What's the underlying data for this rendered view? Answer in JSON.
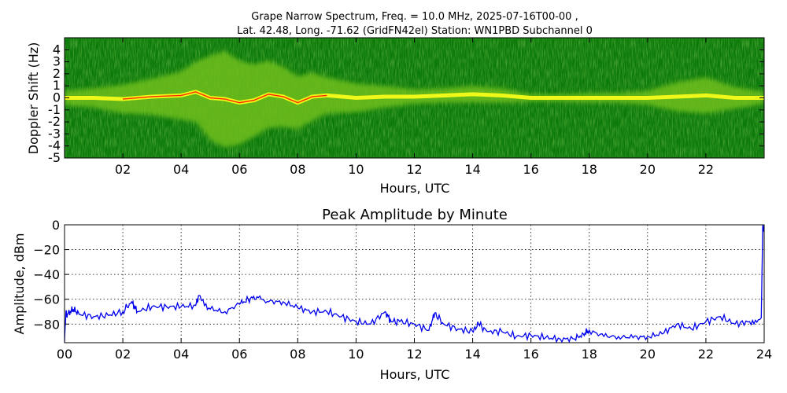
{
  "chart_data": [
    {
      "type": "heatmap",
      "title_line1": "Grape Narrow Spectrum, Freq. = 10.0 MHz, 2025-07-16T00-00 ,",
      "title_line2": "Lat.  42.48, Long. -71.62 (GridFN42el) Station: WN1PBD Subchannel 0",
      "xlabel": "Hours, UTC",
      "ylabel": "Doppler Shift (Hz)",
      "xlim": [
        0,
        24
      ],
      "ylim": [
        -5,
        5
      ],
      "x_ticks": [
        2,
        4,
        6,
        8,
        10,
        12,
        14,
        16,
        18,
        20,
        22
      ],
      "x_tick_labels": [
        "02",
        "04",
        "06",
        "08",
        "10",
        "12",
        "14",
        "16",
        "18",
        "20",
        "22"
      ],
      "y_ticks": [
        -5,
        -4,
        -3,
        -2,
        -1,
        0,
        1,
        2,
        3,
        4
      ],
      "y_tick_labels": [
        "-5",
        "-4",
        "-3",
        "-2",
        "-1",
        "0",
        "1",
        "2",
        "3",
        "4"
      ],
      "colors": {
        "background": "#0b7a0b",
        "mid": "#6fbf1a",
        "high": "#ffff1a",
        "peak": "#ff2a00"
      },
      "doppler_trace": {
        "hours": [
          0,
          1,
          2,
          3,
          4,
          4.5,
          5,
          5.5,
          6,
          6.5,
          7,
          7.5,
          8,
          8.5,
          9,
          10,
          11,
          12,
          13,
          14,
          15,
          16,
          17,
          18,
          19,
          20,
          21,
          22,
          23,
          24
        ],
        "hz": [
          0,
          0,
          -0.1,
          0.1,
          0.2,
          0.5,
          0,
          -0.1,
          -0.4,
          -0.2,
          0.3,
          0.1,
          -0.4,
          0.1,
          0.2,
          0,
          0.1,
          0.1,
          0.2,
          0.3,
          0.2,
          0,
          0,
          0,
          0,
          0,
          0.1,
          0.2,
          0,
          0
        ],
        "band_hz": [
          0.6,
          0.8,
          1.2,
          1.5,
          2.0,
          2.5,
          3.5,
          4.0,
          3.5,
          3.0,
          2.8,
          2.5,
          2.2,
          2.0,
          1.5,
          1.2,
          0.9,
          0.6,
          0.6,
          0.7,
          0.6,
          0.3,
          0.3,
          0.4,
          0.4,
          0.6,
          1.2,
          1.5,
          0.9,
          0.5
        ]
      }
    },
    {
      "type": "line",
      "title": "Peak Amplitude by Minute",
      "xlabel": "Hours, UTC",
      "ylabel": "Amplitude, dBm",
      "xlim": [
        0,
        24
      ],
      "ylim": [
        -95,
        0
      ],
      "x_ticks": [
        0,
        2,
        4,
        6,
        8,
        10,
        12,
        14,
        16,
        18,
        20,
        22,
        24
      ],
      "x_tick_labels": [
        "00",
        "02",
        "04",
        "06",
        "08",
        "10",
        "12",
        "14",
        "16",
        "18",
        "20",
        "22",
        "24"
      ],
      "y_ticks": [
        0,
        -20,
        -40,
        -60,
        -80
      ],
      "y_tick_labels": [
        "0",
        "−20",
        "−40",
        "−60",
        "−80"
      ],
      "grid": true,
      "line_color": "#0000ee",
      "series": [
        {
          "name": "Peak Amplitude",
          "x": [
            0,
            0.05,
            0.1,
            0.3,
            0.5,
            1.0,
            1.5,
            2.0,
            2.3,
            2.5,
            3.0,
            3.5,
            4.0,
            4.5,
            4.6,
            5.0,
            5.5,
            6.0,
            6.3,
            6.6,
            7.0,
            7.5,
            8.0,
            8.5,
            9.0,
            9.5,
            10.0,
            10.5,
            11.0,
            11.2,
            11.5,
            12.0,
            12.5,
            12.7,
            13.0,
            13.5,
            14.0,
            14.2,
            14.5,
            15.0,
            15.5,
            16.0,
            16.5,
            17.0,
            17.5,
            17.8,
            18.0,
            18.5,
            19.0,
            19.5,
            20.0,
            20.5,
            21.0,
            21.5,
            22.0,
            22.5,
            23.0,
            23.5,
            23.9,
            23.95,
            24.0
          ],
          "y": [
            -95,
            -70,
            -72,
            -68,
            -72,
            -74,
            -73,
            -70,
            -62,
            -70,
            -66,
            -66,
            -66,
            -65,
            -57,
            -68,
            -70,
            -64,
            -60,
            -58,
            -62,
            -62,
            -67,
            -70,
            -70,
            -74,
            -78,
            -80,
            -70,
            -78,
            -78,
            -80,
            -85,
            -71,
            -80,
            -84,
            -86,
            -80,
            -86,
            -86,
            -90,
            -89,
            -91,
            -92,
            -92,
            -88,
            -85,
            -90,
            -90,
            -91,
            -90,
            -88,
            -80,
            -84,
            -78,
            -74,
            -80,
            -78,
            -75,
            -2,
            -2
          ]
        }
      ]
    }
  ]
}
